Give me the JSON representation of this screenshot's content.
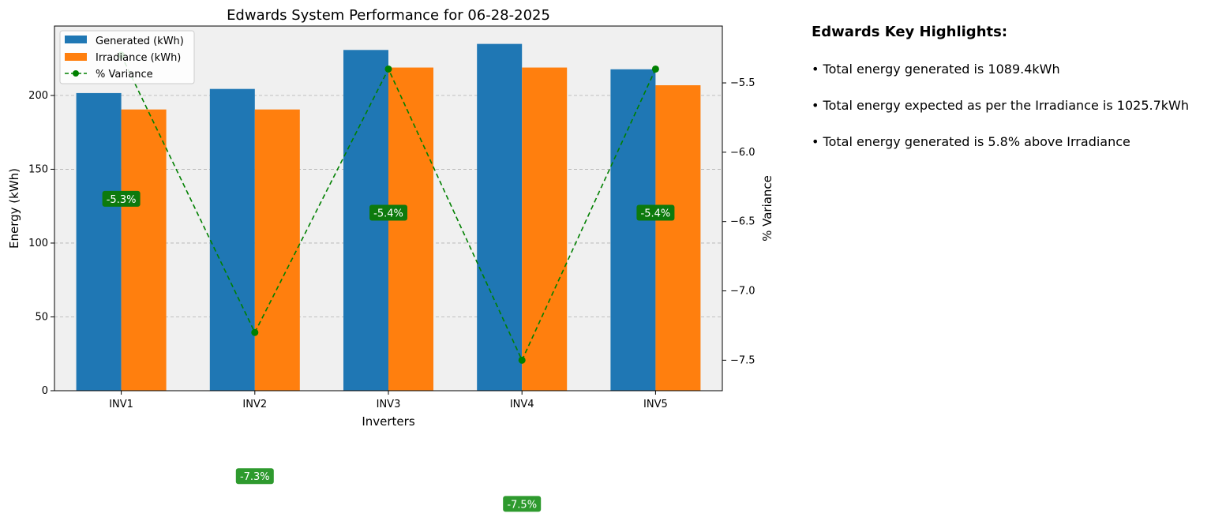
{
  "chart_data": {
    "type": "bar",
    "title": "Edwards System Performance for 06-28-2025",
    "xlabel": "Inverters",
    "ylabel": "Energy (kWh)",
    "y2label": "% Variance",
    "categories": [
      "INV1",
      "INV2",
      "INV3",
      "INV4",
      "INV5"
    ],
    "series": [
      {
        "name": "Generated (kWh)",
        "kind": "bar",
        "axis": "left",
        "color": "#1f77b4",
        "values": [
          201.6,
          204.4,
          230.8,
          234.9,
          217.7
        ]
      },
      {
        "name": "Irradiance (kWh)",
        "kind": "bar",
        "axis": "left",
        "color": "#ff7f0e",
        "values": [
          190.5,
          190.5,
          218.9,
          218.9,
          206.9
        ]
      },
      {
        "name": "% Variance",
        "kind": "line",
        "axis": "right",
        "color": "#008000",
        "values": [
          -5.3,
          -7.3,
          -5.4,
          -7.5,
          -5.4
        ]
      }
    ],
    "variance_labels": [
      "-5.3%",
      "-7.3%",
      "-5.4%",
      "-7.5%",
      "-5.4%"
    ],
    "ylim": [
      0,
      247
    ],
    "y2lim": [
      -7.72,
      -5.09
    ],
    "yticks": [
      0,
      50,
      100,
      150,
      200
    ],
    "y2ticks": [
      "-5.5",
      "-6.0",
      "-6.5",
      "-7.0",
      "-7.5"
    ],
    "y2tick_values": [
      -5.5,
      -6.0,
      -6.5,
      -7.0,
      -7.5
    ],
    "grid": true,
    "legend_position": "top-left",
    "plot_background": "#f0f0f0"
  },
  "highlights": {
    "title": "Edwards Key Highlights:",
    "items": [
      "• Total energy generated is 1089.4kWh",
      "• Total energy expected as per the Irradiance is 1025.7kWh",
      "• Total energy generated is 5.8% above Irradiance"
    ]
  }
}
